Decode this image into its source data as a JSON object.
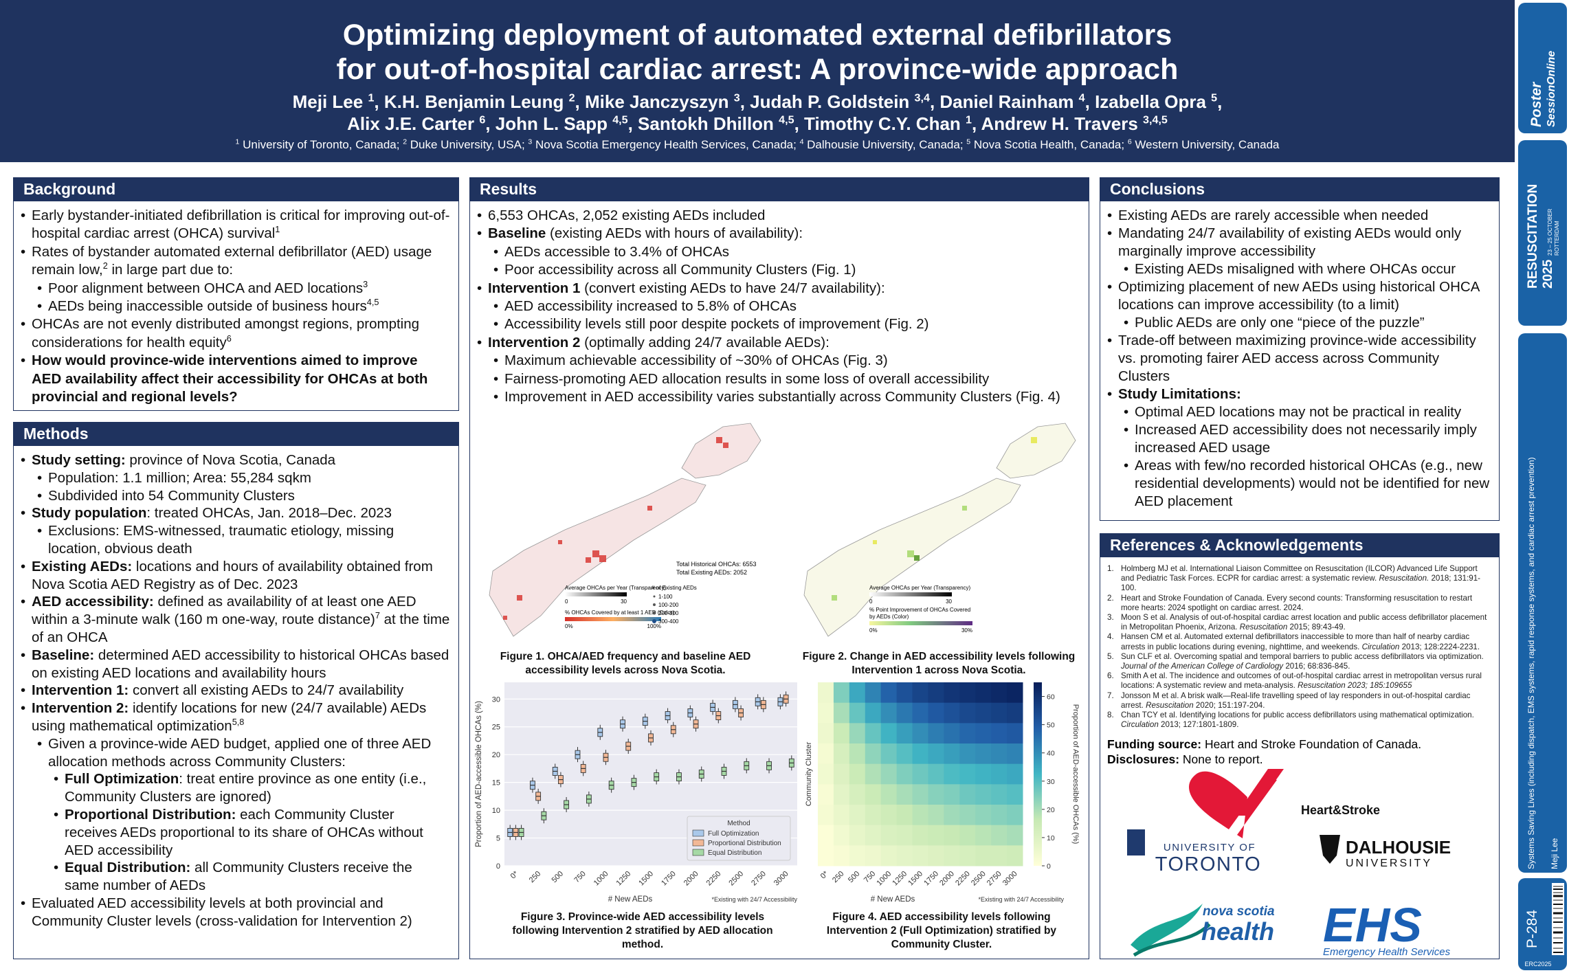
{
  "header": {
    "title": [
      "Optimizing deployment of automated external defibrillators",
      "for out-of-hospital cardiac arrest: A province-wide approach"
    ],
    "authors": [
      [
        "Meji Lee ",
        {
          "sup": "1"
        },
        ", K.H. Benjamin Leung ",
        {
          "sup": "2"
        },
        ", Mike Janczyszyn ",
        {
          "sup": "3"
        },
        ", Judah P. Goldstein ",
        {
          "sup": "3,4"
        },
        ", Daniel Rainham ",
        {
          "sup": "4"
        },
        ", Izabella Opra ",
        {
          "sup": "5"
        },
        ","
      ],
      [
        "Alix J.E. Carter ",
        {
          "sup": "6"
        },
        ", John L. Sapp ",
        {
          "sup": "4,5"
        },
        ", Santokh Dhillon ",
        {
          "sup": "4,5"
        },
        ", Timothy C.Y. Chan ",
        {
          "sup": "1"
        },
        ", Andrew H. Travers ",
        {
          "sup": "3,4,5"
        }
      ]
    ],
    "affiliations": [
      {
        "sup": "1"
      },
      " University of Toronto, Canada; ",
      {
        "sup": "2"
      },
      " Duke University, USA; ",
      {
        "sup": "3"
      },
      " Nova Scotia Emergency Health Services, Canada; ",
      {
        "sup": "4"
      },
      " Dalhousie University, Canada; ",
      {
        "sup": "5"
      },
      " Nova Scotia Health, Canada; ",
      {
        "sup": "6"
      },
      " Western University, Canada"
    ]
  },
  "sections": {
    "background": {
      "heading": "Background",
      "items": [
        {
          "level": 0,
          "parts": [
            "Early bystander-initiated defibrillation is critical for improving out-of-hospital cardiac arrest (OHCA) survival",
            {
              "sup": "1"
            }
          ]
        },
        {
          "level": 0,
          "parts": [
            "Rates of bystander automated external defibrillator (AED) usage remain low,",
            {
              "sup": "2"
            },
            " in large part due to:"
          ]
        },
        {
          "level": 1,
          "parts": [
            "Poor alignment between OHCA and AED locations",
            {
              "sup": "3"
            }
          ]
        },
        {
          "level": 1,
          "parts": [
            "AEDs being inaccessible outside of business hours",
            {
              "sup": "4,5"
            }
          ]
        },
        {
          "level": 0,
          "parts": [
            "OHCAs are not evenly distributed amongst regions, prompting considerations for health equity",
            {
              "sup": "6"
            }
          ]
        },
        {
          "level": 0,
          "parts": [
            {
              "b": "How would province-wide interventions aimed to improve AED availability affect their accessibility for OHCAs at both provincial and regional levels?"
            }
          ]
        }
      ]
    },
    "methods": {
      "heading": "Methods",
      "items": [
        {
          "level": 0,
          "parts": [
            {
              "b": "Study setting:"
            },
            " province of Nova Scotia, Canada"
          ]
        },
        {
          "level": 1,
          "parts": [
            "Population: 1.1 million; Area: 55,284 sqkm"
          ]
        },
        {
          "level": 1,
          "parts": [
            "Subdivided into 54 Community Clusters"
          ]
        },
        {
          "level": 0,
          "parts": [
            {
              "b": "Study population"
            },
            ": treated OHCAs, Jan. 2018–Dec. 2023"
          ]
        },
        {
          "level": 1,
          "parts": [
            "Exclusions: EMS-witnessed, traumatic etiology, missing location, obvious death"
          ]
        },
        {
          "level": 0,
          "parts": [
            {
              "b": "Existing AEDs:"
            },
            " locations and hours of availability obtained from Nova Scotia AED Registry as of Dec. 2023"
          ]
        },
        {
          "level": 0,
          "parts": [
            {
              "b": "AED accessibility:"
            },
            " defined as availability of at least one AED within a 3-minute walk (160 m one-way, route distance)",
            {
              "sup": "7"
            },
            " at the time of an OHCA"
          ]
        },
        {
          "level": 0,
          "parts": [
            {
              "b": "Baseline:"
            },
            " determined AED accessibility to historical OHCAs based on existing AED locations and availability hours"
          ]
        },
        {
          "level": 0,
          "parts": [
            {
              "b": "Intervention 1:"
            },
            " convert all existing AEDs to 24/7 availability"
          ]
        },
        {
          "level": 0,
          "parts": [
            {
              "b": "Intervention 2:"
            },
            " identify locations for new (24/7 available) AEDs using mathematical optimization",
            {
              "sup": "5,8"
            }
          ]
        },
        {
          "level": 1,
          "parts": [
            "Given a province-wide AED budget, applied one of three AED allocation methods across Community Clusters:"
          ]
        },
        {
          "level": 2,
          "parts": [
            {
              "b": "Full Optimization"
            },
            ": treat entire province as one entity (i.e., Community Clusters are ignored)"
          ]
        },
        {
          "level": 2,
          "parts": [
            {
              "b": "Proportional Distribution:"
            },
            " each Community Cluster receives AEDs proportional to its share of OHCAs without AED accessibility"
          ]
        },
        {
          "level": 2,
          "parts": [
            {
              "b": "Equal Distribution:"
            },
            " all Community Clusters receive the same number of AEDs"
          ]
        },
        {
          "level": 0,
          "parts": [
            "Evaluated AED accessibility levels at both provincial and Community Cluster levels (cross-validation for Intervention 2)"
          ]
        }
      ]
    },
    "results": {
      "heading": "Results",
      "items": [
        {
          "level": 0,
          "parts": [
            "6,553 OHCAs, 2,052 existing AEDs included"
          ]
        },
        {
          "level": 0,
          "parts": [
            {
              "b": "Baseline"
            },
            " (existing AEDs with hours of availability):"
          ]
        },
        {
          "level": 1,
          "parts": [
            "AEDs accessible to 3.4% of OHCAs"
          ]
        },
        {
          "level": 1,
          "parts": [
            "Poor accessibility across all Community Clusters (Fig. 1)"
          ]
        },
        {
          "level": 0,
          "parts": [
            {
              "b": "Intervention 1"
            },
            " (convert existing AEDs to have 24/7 availability):"
          ]
        },
        {
          "level": 1,
          "parts": [
            "AED accessibility increased to 5.8% of OHCAs"
          ]
        },
        {
          "level": 1,
          "parts": [
            "Accessibility levels still poor despite pockets of improvement (Fig. 2)"
          ]
        },
        {
          "level": 0,
          "parts": [
            {
              "b": "Intervention 2"
            },
            " (optimally adding 24/7 available AEDs):"
          ]
        },
        {
          "level": 1,
          "parts": [
            "Maximum achievable accessibility of ~30% of OHCAs (Fig. 3)"
          ]
        },
        {
          "level": 1,
          "parts": [
            "Fairness-promoting AED allocation results in some loss of overall accessibility"
          ]
        },
        {
          "level": 1,
          "parts": [
            "Improvement in AED accessibility varies substantially across Community Clusters (Fig. 4)"
          ]
        }
      ]
    },
    "conclusions": {
      "heading": "Conclusions",
      "items": [
        {
          "level": 0,
          "parts": [
            "Existing AEDs are rarely accessible when needed"
          ]
        },
        {
          "level": 0,
          "parts": [
            "Mandating 24/7 availability of existing AEDs would only marginally improve accessibility"
          ]
        },
        {
          "level": 1,
          "parts": [
            "Existing AEDs misaligned with where OHCAs occur"
          ]
        },
        {
          "level": 0,
          "parts": [
            "Optimizing placement of new AEDs using historical OHCA locations can improve accessibility (to a limit)"
          ]
        },
        {
          "level": 1,
          "parts": [
            "Public AEDs are only one “piece of the puzzle”"
          ]
        },
        {
          "level": 0,
          "parts": [
            "Trade-off between maximizing province-wide accessibility vs. promoting fairer AED access across Community Clusters"
          ]
        },
        {
          "level": 0,
          "parts": [
            {
              "b": "Study Limitations:"
            }
          ]
        },
        {
          "level": 1,
          "parts": [
            "Optimal AED locations may not be practical in reality"
          ]
        },
        {
          "level": 1,
          "parts": [
            "Increased AED accessibility does not necessarily imply increased AED usage"
          ]
        },
        {
          "level": 1,
          "parts": [
            "Areas with few/no recorded historical OHCAs (e.g., new residential developments) would not be identified for new AED placement"
          ]
        }
      ]
    },
    "references": {
      "heading": "References & Acknowledgements",
      "items": [
        {
          "num": "1.",
          "parts": [
            "Holmberg MJ et al. International Liaison Committee on Resuscitation (ILCOR) Advanced Life Support and Pediatric Task Forces. ECPR for cardiac arrest: a systematic review. ",
            {
              "i": "Resuscitation."
            },
            " 2018; 131:91-100."
          ]
        },
        {
          "num": "2.",
          "parts": [
            "Heart and Stroke Foundation of Canada. Every second counts: Transforming resuscitation to restart more hearts: 2024 spotlight on cardiac arrest. 2024."
          ]
        },
        {
          "num": "3.",
          "parts": [
            "Moon S et al. Analysis of out-of-hospital cardiac arrest location and public access defibrillator placement in Metropolitan Phoenix, Arizona. ",
            {
              "i": "Resuscitation"
            },
            " 2015; 89:43-49."
          ]
        },
        {
          "num": "4.",
          "parts": [
            "Hansen CM et al. Automated external defibrillators inaccessible to more than half of nearby cardiac arrests in public locations during evening, nighttime, and weekends. ",
            {
              "i": "Circulation"
            },
            " 2013; 128:2224-2231."
          ]
        },
        {
          "num": "5.",
          "parts": [
            "Sun CLF et al. Overcoming spatial and temporal barriers to public access defibrillators via optimization. ",
            {
              "i": "Journal of the American College of Cardiology"
            },
            " 2016; 68:836-845."
          ]
        },
        {
          "num": "6.",
          "parts": [
            "Smith A et al. The incidence and outcomes of out-of-hospital cardiac arrest in metropolitan versus rural locations: A systematic review and meta-analysis. ",
            {
              "i": "Resuscitation 2023; 185:109655"
            }
          ]
        },
        {
          "num": "7.",
          "parts": [
            "Jonsson M et al. A brisk walk—Real-life travelling speed of lay responders in out-of-hospital cardiac arrest. ",
            {
              "i": "Resuscitation"
            },
            " 2020; 151:197-204."
          ]
        },
        {
          "num": "8.",
          "parts": [
            "Chan TCY et al. Identifying locations for public access defibrillators using mathematical optimization. ",
            {
              "i": "Circulation"
            },
            " 2013; 127:1801-1809."
          ]
        }
      ],
      "funding": [
        {
          "b": "Funding source:"
        },
        " Heart and Stroke Foundation of Canada."
      ],
      "disclosures": [
        {
          "b": "Disclosures:"
        },
        " None to report."
      ]
    }
  },
  "figures": [
    {
      "caption": "Figure 1. OHCA/AED frequency and baseline AED accessibility levels across Nova Scotia.",
      "totals": [
        "Total Historical OHCAs: 6553",
        "Total Existing AEDs: 2052"
      ],
      "transparency_title": "Average OHCAs per Year (Transparency)",
      "transparency_ticks": [
        "0",
        "30"
      ],
      "color_title": "% OHCAs Covered by at least 1 AED (Color)",
      "color_ticks": [
        "0%",
        "100%"
      ],
      "size_title": "# of Existing AEDs",
      "size_labels": [
        "1-100",
        "100-200",
        "200-300",
        "300-400"
      ]
    },
    {
      "caption": "Figure 2. Change in AED accessibility levels following Intervention 1 across Nova Scotia.",
      "transparency_title": "Average OHCAs per Year (Transparency)",
      "transparency_ticks": [
        "0",
        "30"
      ],
      "color_title": [
        "% Point Improvement of OHCAs Covered",
        "by AEDs (Color)"
      ],
      "color_ticks": [
        "0%",
        "30%"
      ]
    },
    {
      "caption": "Figure 3. Province-wide AED accessibility levels following Intervention 2 stratified by AED allocation method.",
      "type": "box",
      "categories": [
        "0*",
        "250",
        "500",
        "750",
        "1000",
        "1250",
        "1500",
        "1750",
        "2000",
        "2250",
        "2500",
        "2750",
        "3000"
      ],
      "series": [
        {
          "name": "Full Optimization",
          "color": "#a9c8ea",
          "values": [
            6,
            14.5,
            17,
            20,
            24,
            25.5,
            26,
            27,
            27.5,
            28.5,
            29,
            29.5,
            29.5
          ]
        },
        {
          "name": "Proportional Distribution",
          "color": "#f2b896",
          "values": [
            6,
            12.5,
            15.5,
            17.5,
            19.5,
            21.5,
            23,
            24.5,
            25.5,
            27,
            27.5,
            29,
            30
          ]
        },
        {
          "name": "Equal Distribution",
          "color": "#a6d9a6",
          "values": [
            6,
            9,
            11,
            12,
            14.5,
            15,
            16,
            16,
            16.5,
            17,
            18,
            18,
            18.5
          ]
        }
      ],
      "ylim": [
        0,
        33
      ],
      "yticks": [
        0,
        5,
        10,
        15,
        20,
        25,
        30
      ],
      "y_label": "Proportion of AED-accessible OHCAs (%)",
      "x_label": "# New AEDs",
      "note": "*Existing with 24/7 Accessibility",
      "legend_title": "Method",
      "legend": "lower right"
    },
    {
      "caption": "Figure 4. AED accessibility levels following Intervention 2 (Full Optimization) stratified by Community Cluster.",
      "type": "heatmap",
      "categories": [
        "0*",
        "250",
        "500",
        "750",
        "1000",
        "1250",
        "1500",
        "1750",
        "2000",
        "2250",
        "2500",
        "2750",
        "3000"
      ],
      "rows": [
        [
          5,
          25,
          35,
          42,
          48,
          52,
          55,
          57,
          59,
          60,
          61,
          62,
          63
        ],
        [
          4,
          20,
          28,
          35,
          40,
          44,
          47,
          50,
          52,
          54,
          55,
          56,
          57
        ],
        [
          5,
          15,
          22,
          28,
          33,
          37,
          40,
          43,
          45,
          47,
          48,
          49,
          50
        ],
        [
          3,
          12,
          18,
          23,
          27,
          30,
          33,
          35,
          37,
          39,
          40,
          41,
          42
        ],
        [
          4,
          10,
          15,
          19,
          22,
          25,
          27,
          29,
          31,
          32,
          33,
          34,
          35
        ],
        [
          2,
          8,
          12,
          15,
          18,
          20,
          22,
          24,
          25,
          27,
          28,
          29,
          30
        ],
        [
          3,
          6,
          9,
          12,
          14,
          16,
          18,
          19,
          21,
          22,
          23,
          24,
          25
        ],
        [
          1,
          4,
          7,
          9,
          11,
          12,
          14,
          15,
          16,
          17,
          18,
          19,
          20
        ],
        [
          1,
          2,
          4,
          5,
          7,
          8,
          9,
          10,
          11,
          12,
          13,
          13,
          14
        ]
      ],
      "clim": [
        0,
        65
      ],
      "cticks": [
        0,
        10,
        20,
        30,
        40,
        50,
        60
      ],
      "colormap": [
        "#ffffd9",
        "#c7e9b4",
        "#41b6c4",
        "#225ea8",
        "#081d58"
      ],
      "y_label": "Community Cluster",
      "x_label": "# New AEDs",
      "note": "*Existing with 24/7 Accessibility",
      "colorbar_label": "Proportion of AED-accessible OHCAs (%)"
    }
  ],
  "logos": {
    "heart": "Heart&Stroke",
    "toronto": [
      "UNIVERSITY OF",
      "TORONTO"
    ],
    "dalhousie": [
      "DALHOUSIE",
      "UNIVERSITY"
    ],
    "nshealth": [
      "nova scotia",
      "health"
    ],
    "ehs": [
      "EHS",
      "Emergency Health Services"
    ]
  },
  "sidebar": {
    "poster_session": [
      "Poster",
      "SessionOnline"
    ],
    "congress": [
      "RESUSCITATION",
      "2025",
      "23 – 25 OCTOBER",
      "ROTTERDAM"
    ],
    "topic": "Systems Saving Lives (including dispatch, EMS systems, rapid response systems, and cardiac arrest prevention)",
    "presenter": "Meji Lee",
    "poster_id": "P-284",
    "code": "ERC2025"
  }
}
